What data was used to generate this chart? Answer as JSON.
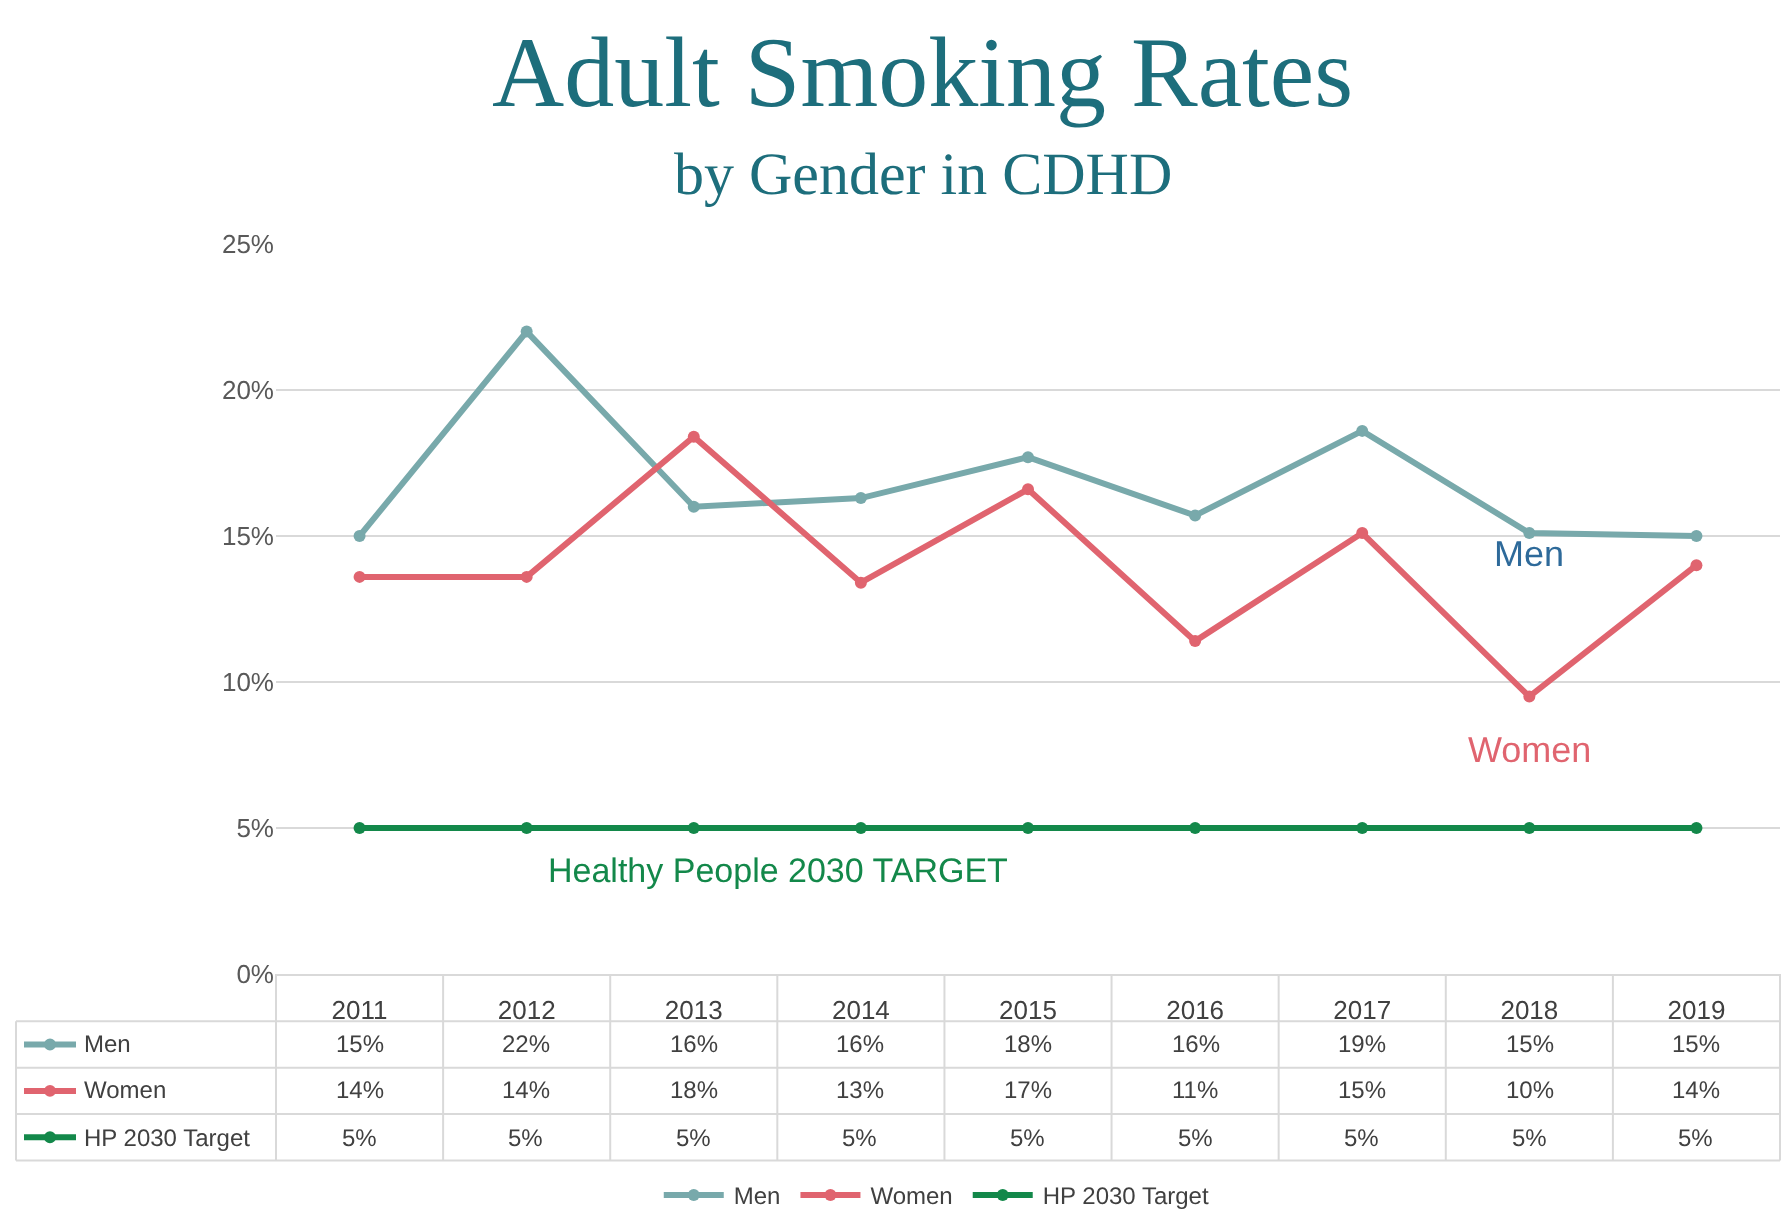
{
  "chart_data": {
    "type": "line",
    "title": "Adult Smoking Rates",
    "subtitle": "by Gender in CDHD",
    "categories": [
      "2011",
      "2012",
      "2013",
      "2014",
      "2015",
      "2016",
      "2017",
      "2018",
      "2019"
    ],
    "series": [
      {
        "name": "Men",
        "color": "#78a9ab",
        "values": [
          15.0,
          22.0,
          16.0,
          16.3,
          17.7,
          15.7,
          18.6,
          15.1,
          15.0
        ],
        "value_labels": [
          "15%",
          "22%",
          "16%",
          "16%",
          "18%",
          "16%",
          "19%",
          "15%",
          "15%"
        ]
      },
      {
        "name": "Women",
        "color": "#e0646f",
        "values": [
          13.6,
          13.6,
          18.4,
          13.4,
          16.6,
          11.4,
          15.1,
          9.5,
          14.0
        ],
        "value_labels": [
          "14%",
          "14%",
          "18%",
          "13%",
          "17%",
          "11%",
          "15%",
          "10%",
          "14%"
        ]
      },
      {
        "name": "HP 2030 Target",
        "color": "#13884a",
        "values": [
          5,
          5,
          5,
          5,
          5,
          5,
          5,
          5,
          5
        ],
        "value_labels": [
          "5%",
          "5%",
          "5%",
          "5%",
          "5%",
          "5%",
          "5%",
          "5%",
          "5%"
        ]
      }
    ],
    "annotations": [
      "Men",
      "Women",
      "Healthy People 2030 TARGET"
    ],
    "ylim": [
      0,
      25
    ],
    "yticks": [
      {
        "value": 0,
        "label": "0%"
      },
      {
        "value": 5,
        "label": "5%"
      },
      {
        "value": 10,
        "label": "10%"
      },
      {
        "value": 15,
        "label": "15%"
      },
      {
        "value": 20,
        "label": "20%"
      },
      {
        "value": 25,
        "label": "25%"
      }
    ],
    "grid": "y",
    "legend": "bottom",
    "marker": "circle",
    "line_style": "solid"
  }
}
